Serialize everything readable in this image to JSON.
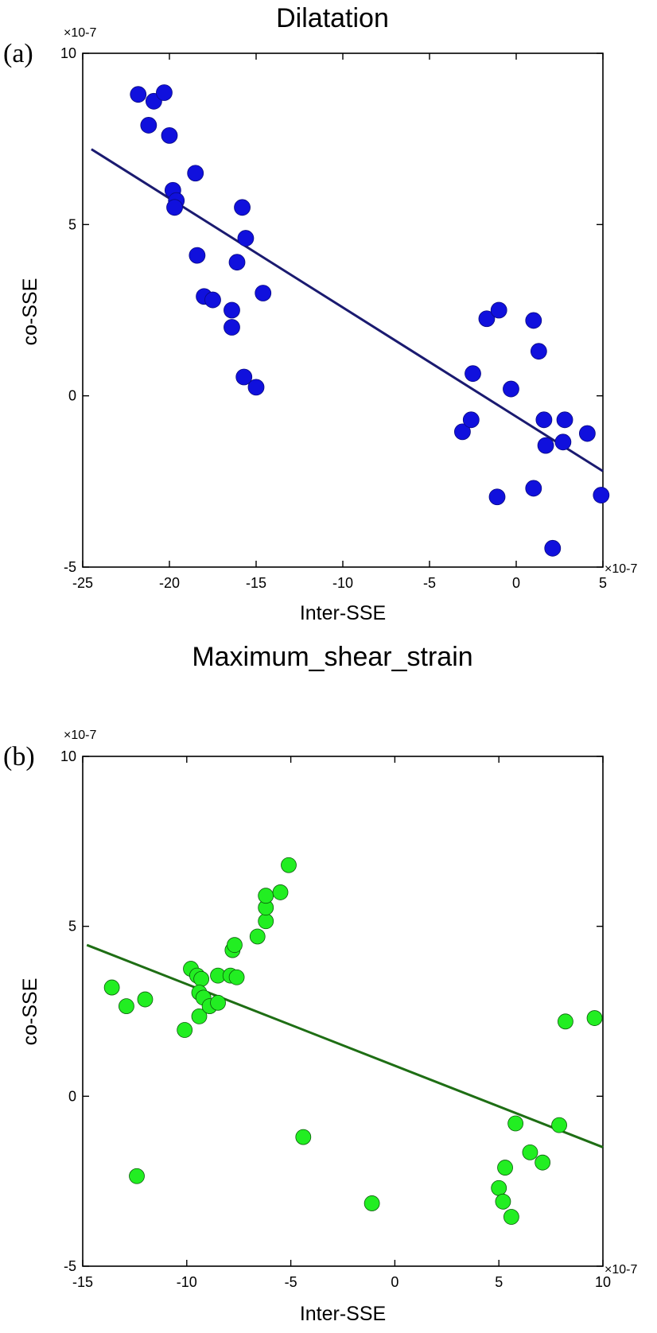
{
  "chart_data": [
    {
      "type": "scatter",
      "panel_label": "(a)",
      "title": "Dilatation",
      "xlabel": "Inter-SSE",
      "ylabel": "co-SSE",
      "x_multiplier": "×10-7",
      "y_multiplier": "×10-7",
      "xlim": [
        -25,
        5
      ],
      "ylim": [
        -5,
        10
      ],
      "xticks": [
        -25,
        -20,
        -15,
        -10,
        -5,
        0,
        5
      ],
      "yticks": [
        -5,
        0,
        5,
        10
      ],
      "grid": false,
      "marker_color": "#1010dd",
      "marker_edge": "#0a0a80",
      "line_color": "#1a1a70",
      "fit_line": {
        "x": [
          -24.5,
          5
        ],
        "y": [
          7.2,
          -2.2
        ]
      },
      "points": [
        [
          -21.8,
          8.8
        ],
        [
          -20.9,
          8.6
        ],
        [
          -20.3,
          8.85
        ],
        [
          -21.2,
          7.9
        ],
        [
          -20.0,
          7.6
        ],
        [
          -19.8,
          6.0
        ],
        [
          -19.6,
          5.7
        ],
        [
          -19.7,
          5.5
        ],
        [
          -18.5,
          6.5
        ],
        [
          -18.4,
          4.1
        ],
        [
          -18.0,
          2.9
        ],
        [
          -17.5,
          2.8
        ],
        [
          -16.4,
          2.5
        ],
        [
          -16.1,
          3.9
        ],
        [
          -15.8,
          5.5
        ],
        [
          -15.6,
          4.6
        ],
        [
          -16.4,
          2.0
        ],
        [
          -15.7,
          0.55
        ],
        [
          -14.6,
          3.0
        ],
        [
          -15.0,
          0.25
        ],
        [
          -3.1,
          -1.05
        ],
        [
          -2.6,
          -0.7
        ],
        [
          -2.5,
          0.65
        ],
        [
          -1.7,
          2.25
        ],
        [
          -1.0,
          2.5
        ],
        [
          -1.1,
          -2.95
        ],
        [
          -0.3,
          0.2
        ],
        [
          1.0,
          2.2
        ],
        [
          1.3,
          1.3
        ],
        [
          1.0,
          -2.7
        ],
        [
          1.6,
          -0.7
        ],
        [
          1.7,
          -1.45
        ],
        [
          2.8,
          -0.7
        ],
        [
          2.7,
          -1.35
        ],
        [
          4.1,
          -1.1
        ],
        [
          4.9,
          -2.9
        ],
        [
          2.1,
          -4.45
        ]
      ]
    },
    {
      "type": "scatter",
      "panel_label": "(b)",
      "title": "Maximum_shear_strain",
      "xlabel": "Inter-SSE",
      "ylabel": "co-SSE",
      "x_multiplier": "×10-7",
      "y_multiplier": "×10-7",
      "xlim": [
        -15,
        10
      ],
      "ylim": [
        -5,
        10
      ],
      "xticks": [
        -15,
        -10,
        -5,
        0,
        5,
        10
      ],
      "yticks": [
        -5,
        0,
        5,
        10
      ],
      "grid": false,
      "marker_color": "#22ee22",
      "marker_edge": "#0a5a0a",
      "line_color": "#1e6e14",
      "fit_line": {
        "x": [
          -14.8,
          10
        ],
        "y": [
          4.45,
          -1.5
        ]
      },
      "points": [
        [
          -13.6,
          3.2
        ],
        [
          -12.9,
          2.65
        ],
        [
          -12.0,
          2.85
        ],
        [
          -12.4,
          -2.35
        ],
        [
          -10.1,
          1.95
        ],
        [
          -9.8,
          3.75
        ],
        [
          -9.5,
          3.55
        ],
        [
          -9.3,
          3.45
        ],
        [
          -9.4,
          3.05
        ],
        [
          -9.2,
          2.9
        ],
        [
          -9.4,
          2.35
        ],
        [
          -8.9,
          2.65
        ],
        [
          -8.5,
          2.75
        ],
        [
          -8.5,
          3.55
        ],
        [
          -7.9,
          3.55
        ],
        [
          -7.6,
          3.5
        ],
        [
          -7.8,
          4.3
        ],
        [
          -7.7,
          4.45
        ],
        [
          -6.6,
          4.7
        ],
        [
          -6.2,
          5.15
        ],
        [
          -6.2,
          5.55
        ],
        [
          -6.2,
          5.9
        ],
        [
          -5.5,
          6.0
        ],
        [
          -5.1,
          6.8
        ],
        [
          -4.4,
          -1.2
        ],
        [
          -1.1,
          -3.15
        ],
        [
          5.0,
          -2.7
        ],
        [
          5.3,
          -2.1
        ],
        [
          5.6,
          -3.55
        ],
        [
          5.2,
          -3.1
        ],
        [
          5.8,
          -0.8
        ],
        [
          6.5,
          -1.65
        ],
        [
          7.1,
          -1.95
        ],
        [
          7.9,
          -0.85
        ],
        [
          8.2,
          2.2
        ],
        [
          9.6,
          2.3
        ]
      ]
    }
  ]
}
